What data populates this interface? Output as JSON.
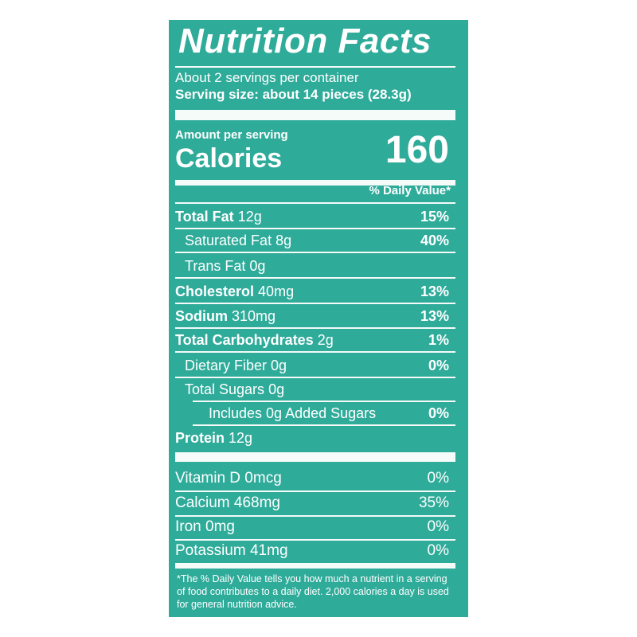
{
  "title": "Nutrition Facts",
  "servings_per_container": "About 2 servings per container",
  "serving_size": "Serving size: about 14 pieces (28.3g)",
  "amount_per_serving": "Amount per serving",
  "calories_label": "Calories",
  "calories_value": "160",
  "daily_value_header": "% Daily Value*",
  "nutrients": [
    {
      "name": "Total Fat",
      "amount": "12g",
      "dv": "15%",
      "bold": true,
      "indent": 0
    },
    {
      "name": "Saturated Fat",
      "amount": "8g",
      "dv": "40%",
      "bold": false,
      "indent": 1
    },
    {
      "name": "Trans Fat",
      "amount": "0g",
      "dv": "",
      "bold": false,
      "indent": 1
    },
    {
      "name": "Cholesterol",
      "amount": "40mg",
      "dv": "13%",
      "bold": true,
      "indent": 0
    },
    {
      "name": "Sodium",
      "amount": "310mg",
      "dv": "13%",
      "bold": true,
      "indent": 0
    },
    {
      "name": "Total Carbohydrates",
      "amount": "2g",
      "dv": "1%",
      "bold": true,
      "indent": 0
    },
    {
      "name": "Dietary Fiber",
      "amount": "0g",
      "dv": "0%",
      "bold": false,
      "indent": 1
    },
    {
      "name": "Total Sugars",
      "amount": "0g",
      "dv": "",
      "bold": false,
      "indent": 1
    },
    {
      "name": "Includes 0g Added Sugars",
      "amount": "",
      "dv": "0%",
      "bold": false,
      "indent": 2
    },
    {
      "name": "Protein",
      "amount": "12g",
      "dv": "",
      "bold": true,
      "indent": 0
    }
  ],
  "vitamins": [
    {
      "name": "Vitamin D",
      "amount": "0mcg",
      "dv": "0%"
    },
    {
      "name": "Calcium",
      "amount": "468mg",
      "dv": "35%"
    },
    {
      "name": "Iron",
      "amount": "0mg",
      "dv": "0%"
    },
    {
      "name": "Potassium",
      "amount": "41mg",
      "dv": "0%"
    }
  ],
  "footnote": "*The % Daily Value tells you how much a nutrient in a serving of food contributes to a daily diet. 2,000 calories a day is used for general nutrition advice.",
  "colors": {
    "panel": "#2fab9a",
    "text": "#ffffff"
  }
}
